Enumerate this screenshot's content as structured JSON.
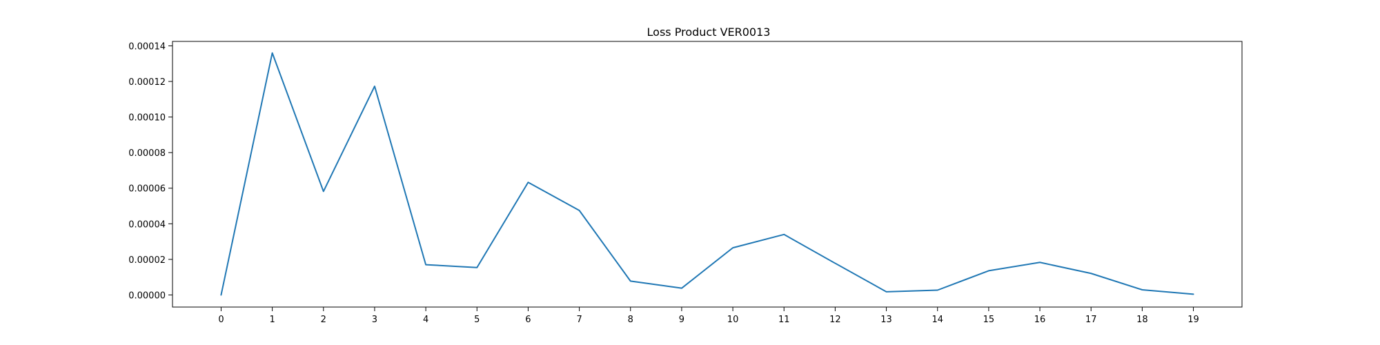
{
  "chart_data": {
    "type": "line",
    "title": "Loss Product VER0013",
    "xlabel": "",
    "ylabel": "",
    "x": [
      0,
      1,
      2,
      3,
      4,
      5,
      6,
      7,
      8,
      9,
      10,
      11,
      12,
      13,
      14,
      15,
      16,
      17,
      18,
      19
    ],
    "x_tick_labels": [
      "0",
      "1",
      "2",
      "3",
      "4",
      "5",
      "6",
      "7",
      "8",
      "9",
      "10",
      "11",
      "12",
      "13",
      "14",
      "15",
      "16",
      "17",
      "18",
      "19"
    ],
    "y_ticks": [
      0,
      2e-05,
      4e-05,
      6e-05,
      8e-05,
      0.0001,
      0.00012,
      0.00014
    ],
    "y_tick_labels": [
      "0.00000",
      "0.00002",
      "0.00004",
      "0.00006",
      "0.00008",
      "0.00010",
      "0.00012",
      "0.00014"
    ],
    "xlim": [
      -0.95,
      19.95
    ],
    "ylim": [
      -6.8e-06,
      0.0001425
    ],
    "grid": false,
    "series": [
      {
        "color": "#1f77b4",
        "values": [
          0.0,
          0.000136,
          5.82e-05,
          0.0001173,
          1.7e-05,
          1.54e-05,
          6.33e-05,
          4.75e-05,
          7.8e-06,
          3.8e-06,
          2.65e-05,
          3.4e-05,
          1.78e-05,
          1.8e-06,
          2.7e-06,
          1.36e-05,
          1.83e-05,
          1.21e-05,
          2.9e-06,
          4e-07
        ]
      }
    ]
  }
}
